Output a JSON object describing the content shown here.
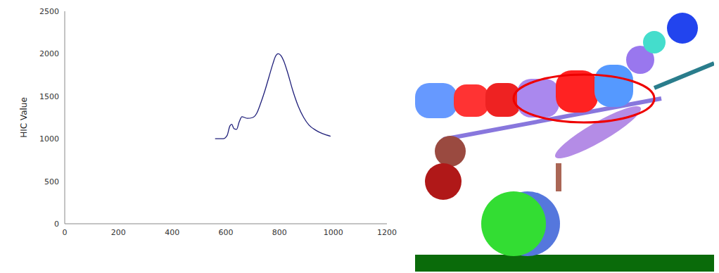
{
  "chart_data": {
    "type": "line",
    "y_label": "HIC Value",
    "x": [
      560,
      590,
      605,
      615,
      622,
      630,
      640,
      650,
      660,
      670,
      680,
      700,
      715,
      730,
      745,
      760,
      775,
      785,
      795,
      805,
      815,
      830,
      850,
      870,
      890,
      910,
      935,
      960,
      990
    ],
    "values": [
      1000,
      1000,
      1040,
      1150,
      1170,
      1120,
      1110,
      1200,
      1260,
      1250,
      1240,
      1250,
      1300,
      1420,
      1560,
      1720,
      1880,
      1970,
      2000,
      1980,
      1920,
      1780,
      1560,
      1380,
      1250,
      1160,
      1100,
      1060,
      1030
    ],
    "color": "#1f1f7a",
    "xlim": [
      0,
      1200
    ],
    "xticks": [
      0,
      200,
      400,
      600,
      800,
      1000,
      1200
    ],
    "ylim": [
      0,
      2500
    ],
    "yticks": [
      0,
      500,
      1000,
      1500,
      2000,
      2500
    ],
    "grid": false
  }
}
